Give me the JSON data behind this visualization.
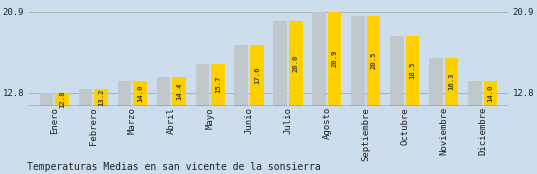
{
  "categories": [
    "Enero",
    "Febrero",
    "Marzo",
    "Abril",
    "Mayo",
    "Junio",
    "Julio",
    "Agosto",
    "Septiembre",
    "Octubre",
    "Noviembre",
    "Diciembre"
  ],
  "values": [
    12.8,
    13.2,
    14.0,
    14.4,
    15.7,
    17.6,
    20.0,
    20.9,
    20.5,
    18.5,
    16.3,
    14.0
  ],
  "bar_color_yellow": "#FFD000",
  "bar_color_gray": "#C0C8CC",
  "background_color": "#CCDDED",
  "title": "Temperaturas Medias en san vicente de la sonsierra",
  "ymin": 11.5,
  "ymax": 21.8,
  "yticks": [
    12.8,
    20.9
  ],
  "hline_y1": 20.9,
  "hline_y2": 12.8,
  "value_label_color": "#444422",
  "axis_label_color": "#222222",
  "title_color": "#222222",
  "title_fontsize": 7.0,
  "tick_fontsize": 6.5,
  "value_fontsize": 5.2,
  "bar_width": 0.35,
  "bar_gap": 0.05
}
